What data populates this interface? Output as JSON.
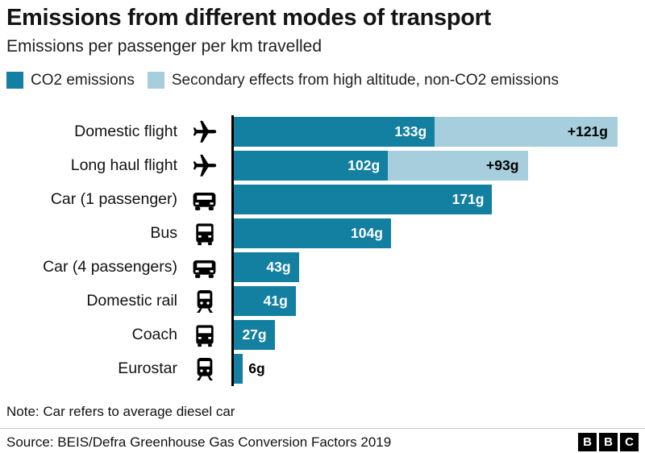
{
  "header": {
    "title": "Emissions from different modes of transport",
    "subtitle": "Emissions per passenger per km travelled"
  },
  "legend": [
    {
      "label": "CO2 emissions",
      "color": "#1380A1"
    },
    {
      "label": "Secondary effects from high altitude, non-CO2 emissions",
      "color": "#A6CEDC"
    }
  ],
  "chart_data": {
    "type": "bar",
    "orientation": "horizontal",
    "title": "Emissions from different modes of transport",
    "subtitle": "Emissions per passenger per km travelled",
    "unit": "g per passenger per km",
    "max_value": 254,
    "grid": false,
    "legend_position": "top",
    "categories": [
      "Domestic flight",
      "Long haul flight",
      "Car (1 passenger)",
      "Bus",
      "Car (4 passengers)",
      "Domestic rail",
      "Coach",
      "Eurostar"
    ],
    "icons": [
      "airplane",
      "airplane",
      "car",
      "bus",
      "car",
      "train",
      "bus",
      "train"
    ],
    "series": [
      {
        "name": "CO2 emissions",
        "color": "#1380A1",
        "values": [
          133,
          102,
          171,
          104,
          43,
          41,
          27,
          6
        ],
        "labels": [
          "133g",
          "102g",
          "171g",
          "104g",
          "43g",
          "41g",
          "27g",
          "6g"
        ]
      },
      {
        "name": "Secondary effects from high altitude, non-CO2 emissions",
        "color": "#A6CEDC",
        "values": [
          121,
          93,
          0,
          0,
          0,
          0,
          0,
          0
        ],
        "labels": [
          "+121g",
          "+93g",
          "",
          "",
          "",
          "",
          "",
          ""
        ]
      }
    ]
  },
  "footer": {
    "note": "Note: Car refers to average diesel car",
    "source": "Source: BEIS/Defra Greenhouse Gas Conversion Factors 2019",
    "logo_letters": [
      "B",
      "B",
      "C"
    ]
  }
}
